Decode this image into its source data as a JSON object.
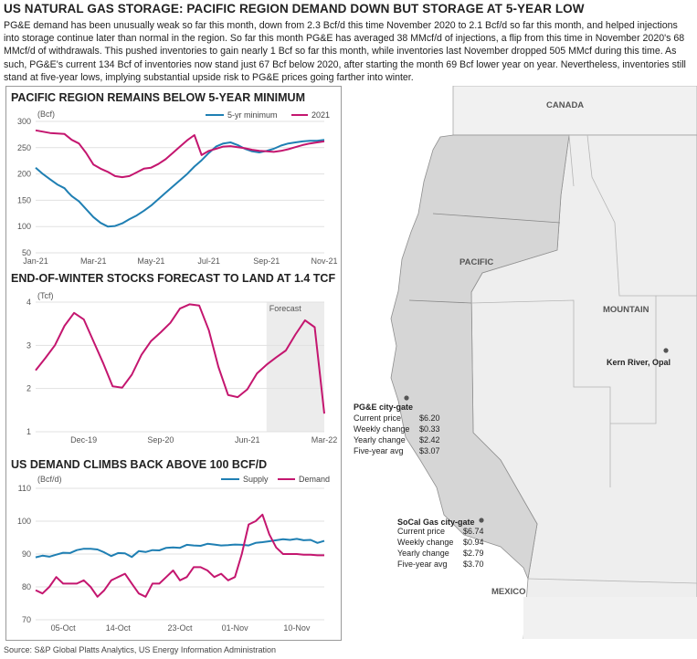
{
  "header": {
    "title": "US NATURAL GAS STORAGE: PACIFIC REGION DEMAND DOWN BUT STORAGE AT 5-YEAR LOW",
    "intro": "PG&E demand has been unusually weak so far this month, down from 2.3 Bcf/d this time November 2020 to 2.1 Bcf/d so far this month, and helped injections into storage continue later than normal in the region. So far this month PG&E has averaged 38 MMcf/d of injections, a flip from this time in November 2020's 68 MMcf/d of withdrawals. This pushed inventories to gain nearly 1 Bcf so far this month, while inventories last November dropped 505 MMcf during this time. As such, PG&E's current 134 Bcf of inventories now stand just 67 Bcf below 2020, after starting the month 69 Bcf lower year on year. Nevertheless, inventories still stand at five-year lows, implying substantial upside risk to PG&E prices going farther into winter."
  },
  "source": "Source: S&P Global Platts Analytics, US Energy Information Administration",
  "colors": {
    "blue": "#1f7fb3",
    "magenta": "#c4166f",
    "forecast_shade": "#ececec"
  },
  "chart_data": [
    {
      "type": "line",
      "title": "PACIFIC REGION REMAINS BELOW 5-YEAR MINIMUM",
      "unit": "(Bcf)",
      "x_ticks": [
        "Jan-21",
        "Mar-21",
        "May-21",
        "Jul-21",
        "Sep-21",
        "Nov-21"
      ],
      "y_ticks": [
        50,
        100,
        150,
        200,
        250,
        300
      ],
      "ylim": [
        50,
        300
      ],
      "legend": "top-right",
      "series": [
        {
          "name": "5-yr minimum",
          "color": "#1f7fb3",
          "x": [
            0,
            1,
            2,
            3,
            4,
            4.5,
            5,
            6,
            7,
            8,
            9,
            10,
            11,
            12,
            13,
            14,
            15,
            16,
            17,
            18,
            19,
            20,
            21,
            22,
            23,
            24,
            25,
            26,
            27,
            28,
            29,
            30,
            31,
            32,
            33,
            34,
            35,
            36,
            37,
            38,
            39,
            40
          ],
          "values": [
            212,
            200,
            190,
            180,
            173,
            165,
            158,
            148,
            133,
            118,
            107,
            100,
            101,
            106,
            114,
            121,
            130,
            140,
            152,
            164,
            176,
            188,
            200,
            214,
            226,
            240,
            252,
            258,
            260,
            255,
            248,
            243,
            241,
            244,
            248,
            254,
            258,
            260,
            262,
            263,
            263,
            265
          ]
        },
        {
          "name": "2021",
          "color": "#c4166f",
          "x": [
            0,
            2,
            4,
            5,
            6,
            7,
            8,
            9,
            10,
            11,
            12,
            13,
            14,
            15,
            16,
            17,
            18,
            19,
            20,
            21,
            22,
            23,
            24,
            25,
            26,
            27,
            28,
            29,
            30,
            31,
            32,
            33,
            34,
            35,
            36,
            37,
            38,
            39,
            40
          ],
          "values": [
            283,
            278,
            276,
            265,
            258,
            240,
            218,
            210,
            204,
            196,
            194,
            196,
            203,
            210,
            212,
            219,
            228,
            240,
            252,
            264,
            274,
            236,
            244,
            248,
            252,
            253,
            251,
            249,
            246,
            244,
            243,
            242,
            244,
            247,
            251,
            255,
            258,
            260,
            262
          ]
        }
      ]
    },
    {
      "type": "line",
      "title": "END-OF-WINTER STOCKS FORECAST TO LAND AT 1.4 TCF",
      "unit": "(Tcf)",
      "x_ticks": [
        "Dec-19",
        "Sep-20",
        "Jun-21",
        "Mar-22"
      ],
      "y_ticks": [
        1,
        2,
        3,
        4
      ],
      "ylim": [
        1,
        4
      ],
      "forecast_label": "Forecast",
      "series": [
        {
          "name": "",
          "color": "#c4166f",
          "x": [
            0,
            1,
            2,
            3,
            4,
            5,
            6,
            7,
            8,
            9,
            10,
            11,
            12,
            13,
            14,
            15,
            16,
            17,
            18,
            19,
            20,
            21,
            22,
            23,
            24,
            25,
            26,
            27,
            28,
            29,
            30
          ],
          "values": [
            2.42,
            2.7,
            3.0,
            3.45,
            3.75,
            3.6,
            3.1,
            2.6,
            2.05,
            2.02,
            2.32,
            2.78,
            3.1,
            3.3,
            3.52,
            3.85,
            3.95,
            3.92,
            3.35,
            2.5,
            1.85,
            1.8,
            1.98,
            2.35,
            2.55,
            2.72,
            2.88,
            3.25,
            3.58,
            3.42,
            1.42
          ]
        }
      ]
    },
    {
      "type": "line",
      "title": "US DEMAND CLIMBS BACK ABOVE 100 BCF/D",
      "unit": "(Bcf/d)",
      "x_ticks": [
        "05-Oct",
        "14-Oct",
        "23-Oct",
        "01-Nov",
        "10-Nov"
      ],
      "y_ticks": [
        70,
        80,
        90,
        100,
        110
      ],
      "ylim": [
        70,
        110
      ],
      "legend": "top-right",
      "series": [
        {
          "name": "Supply",
          "color": "#1f7fb3",
          "x": [
            0,
            1,
            2,
            3,
            4,
            5,
            6,
            7,
            8,
            9,
            10,
            11,
            12,
            13,
            14,
            15,
            16,
            17,
            18,
            19,
            20,
            21,
            22,
            23,
            24,
            25,
            26,
            27,
            28,
            29,
            30,
            31,
            32,
            33,
            34,
            35,
            36,
            37,
            38,
            39,
            40,
            41,
            42
          ],
          "values": [
            89,
            89.5,
            89.2,
            89.8,
            90.4,
            90.3,
            91.2,
            91.6,
            91.6,
            91.4,
            90.5,
            89.4,
            90.3,
            90.2,
            89.1,
            90.9,
            90.6,
            91.2,
            91.1,
            91.9,
            92.0,
            91.9,
            92.8,
            92.6,
            92.5,
            93.1,
            92.9,
            92.6,
            92.7,
            92.9,
            92.8,
            92.6,
            93.4,
            93.6,
            93.9,
            94.2,
            94.5,
            94.3,
            94.6,
            94.2,
            94.3,
            93.4,
            94.0
          ]
        },
        {
          "name": "Demand",
          "color": "#c4166f",
          "x": [
            0,
            1,
            2,
            3,
            4,
            5,
            6,
            7,
            8,
            9,
            10,
            11,
            12,
            13,
            14,
            15,
            16,
            17,
            18,
            19,
            20,
            21,
            22,
            23,
            24,
            25,
            26,
            27,
            28,
            29,
            30,
            31,
            32,
            33,
            34,
            35,
            36,
            37,
            38,
            39,
            40,
            41,
            42
          ],
          "values": [
            79,
            78,
            80,
            83,
            81,
            81,
            81,
            82,
            80,
            77,
            79,
            82,
            83,
            84,
            81,
            78,
            77,
            81,
            81,
            83,
            85,
            82,
            83,
            86,
            86,
            85,
            83,
            84,
            82,
            83,
            90,
            99,
            100,
            102,
            96,
            92,
            90,
            90,
            90,
            89.8,
            89.8,
            89.6,
            89.6
          ]
        }
      ]
    }
  ],
  "map": {
    "regions": [
      "CANADA",
      "PACIFIC",
      "MOUNTAIN",
      "MEXICO"
    ],
    "kern_label": "Kern River, Opal",
    "hubs": [
      {
        "name": "PG&E city-gate",
        "rows": [
          [
            "Current price",
            "$6.20"
          ],
          [
            "Weekly change",
            "$0.33"
          ],
          [
            "Yearly change",
            "$2.42"
          ],
          [
            "Five-year avg",
            "$3.07"
          ]
        ]
      },
      {
        "name": "SoCal Gas city-gate",
        "rows": [
          [
            "Current price",
            "$6.74"
          ],
          [
            "Weekly change",
            "$0.94"
          ],
          [
            "Yearly change",
            "$2.79"
          ],
          [
            "Five-year avg",
            "$3.70"
          ]
        ]
      }
    ]
  }
}
